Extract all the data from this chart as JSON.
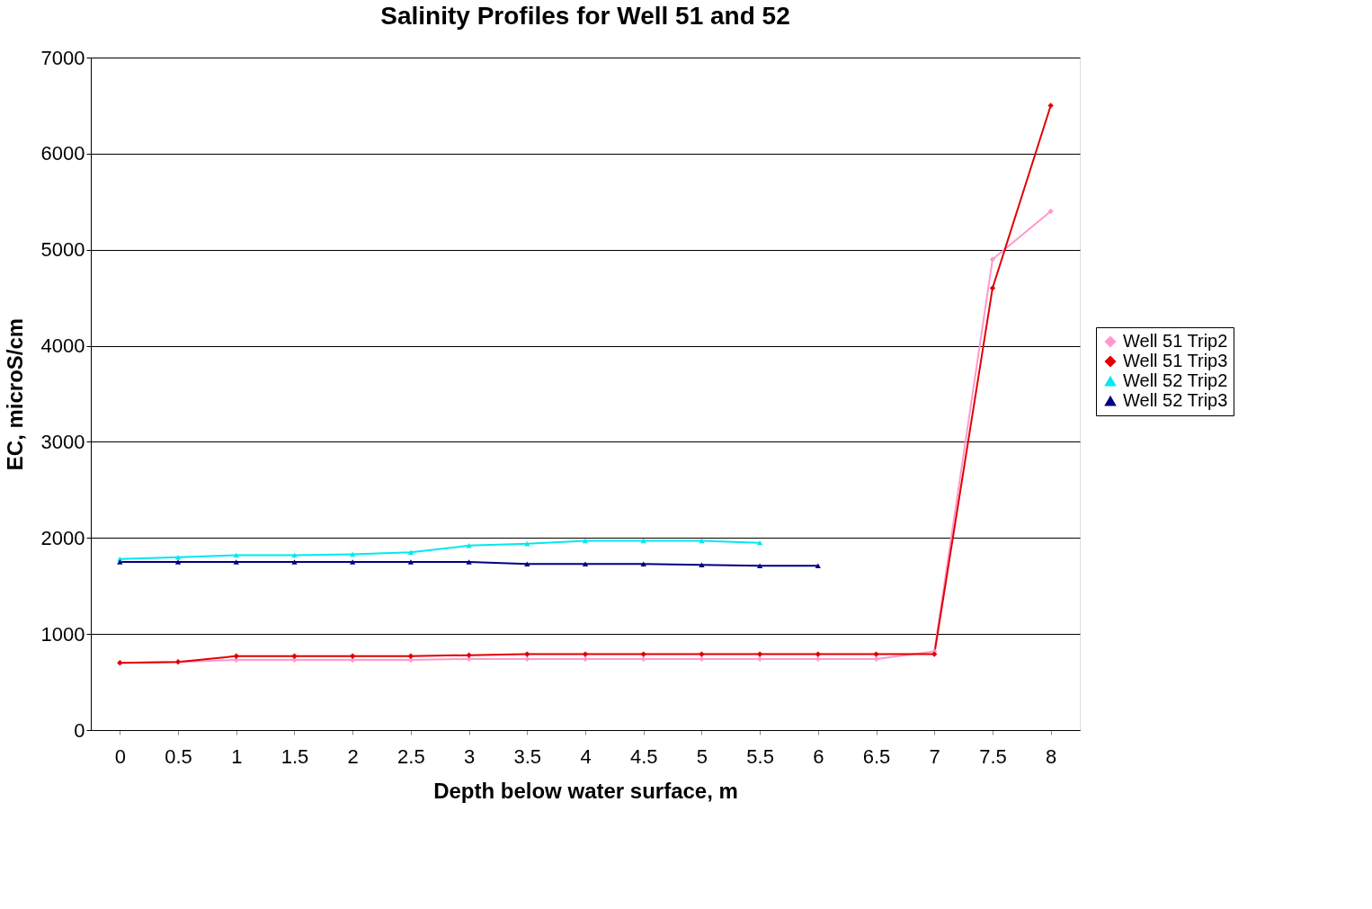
{
  "chart_data": {
    "type": "line",
    "title": "Salinity Profiles for Well 51 and 52",
    "xlabel": "Depth below water surface, m",
    "ylabel": "EC, microS/cm",
    "categories": [
      "0",
      "0.5",
      "1",
      "1.5",
      "2",
      "2.5",
      "3",
      "3.5",
      "4",
      "4.5",
      "5",
      "5.5",
      "6",
      "6.5",
      "7",
      "7.5",
      "8"
    ],
    "series": [
      {
        "name": "Well 51 Trip2",
        "color": "#ff99cc",
        "marker": "diamond",
        "values": [
          700,
          710,
          730,
          730,
          730,
          730,
          740,
          740,
          740,
          740,
          740,
          740,
          740,
          740,
          820,
          4900,
          5400
        ]
      },
      {
        "name": "Well 51 Trip3",
        "color": "#e00000",
        "marker": "diamond",
        "values": [
          700,
          710,
          770,
          770,
          770,
          770,
          780,
          790,
          790,
          790,
          790,
          790,
          790,
          790,
          790,
          4600,
          6500
        ]
      },
      {
        "name": "Well 52 Trip2",
        "color": "#00e8f0",
        "marker": "triangle",
        "values": [
          1780,
          1800,
          1820,
          1820,
          1830,
          1850,
          1920,
          1940,
          1970,
          1970,
          1970,
          1950,
          null,
          null,
          null,
          null,
          null
        ]
      },
      {
        "name": "Well 52 Trip3",
        "color": "#000080",
        "marker": "triangle",
        "values": [
          1750,
          1750,
          1750,
          1750,
          1750,
          1750,
          1750,
          1730,
          1730,
          1730,
          1720,
          1710,
          1710,
          null,
          null,
          null,
          null
        ]
      }
    ],
    "ylim": [
      0,
      7000
    ],
    "yticks": [
      0,
      1000,
      2000,
      3000,
      4000,
      5000,
      6000,
      7000
    ],
    "grid": "y",
    "legend": "right",
    "line_style": "solid"
  }
}
